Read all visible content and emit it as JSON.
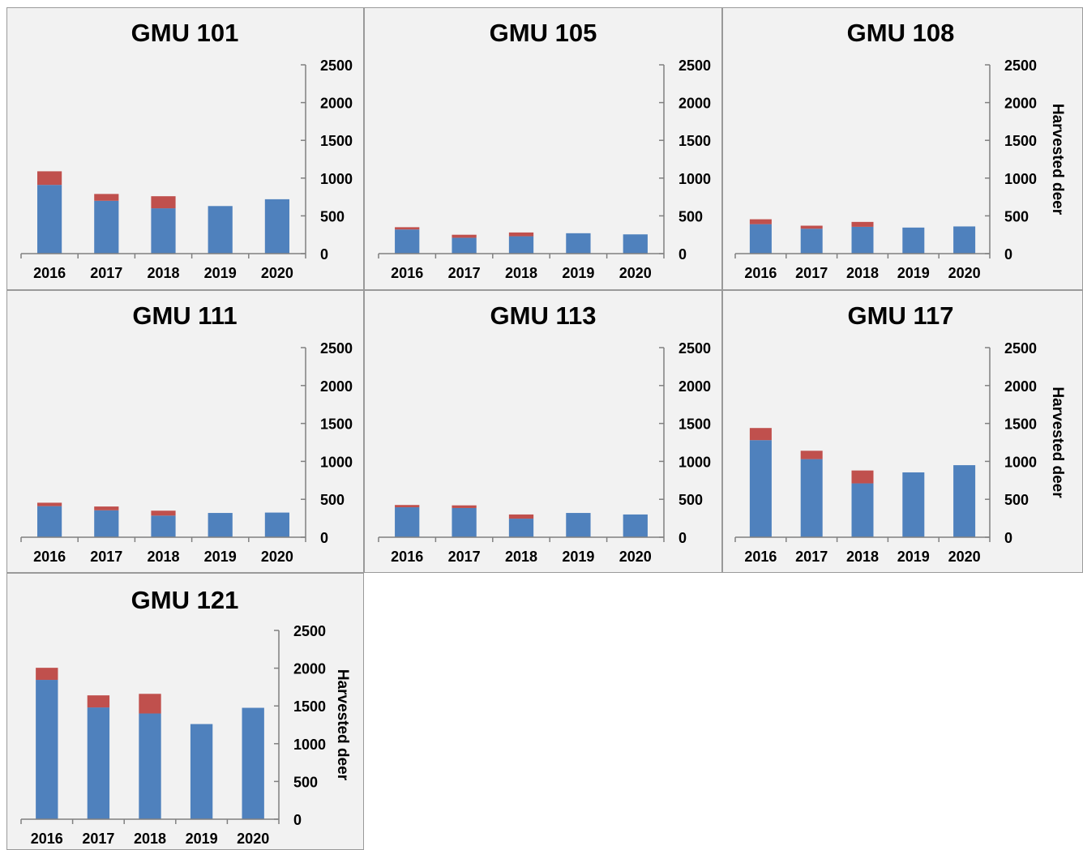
{
  "colors": {
    "lower": "#4f81bd",
    "upper": "#c0504d"
  },
  "chart_data": [
    {
      "type": "bar",
      "title": "GMU 101",
      "categories": [
        "2016",
        "2017",
        "2018",
        "2019",
        "2020"
      ],
      "ylim": [
        0,
        2500
      ],
      "yticks": [
        0,
        500,
        1000,
        1500,
        2000,
        2500
      ],
      "ylabel": "",
      "series": [
        {
          "values": [
            910,
            700,
            600,
            630,
            720
          ]
        },
        {
          "values": [
            180,
            90,
            160,
            0,
            0
          ]
        }
      ]
    },
    {
      "type": "bar",
      "title": "GMU 105",
      "categories": [
        "2016",
        "2017",
        "2018",
        "2019",
        "2020"
      ],
      "ylim": [
        0,
        2500
      ],
      "yticks": [
        0,
        500,
        1000,
        1500,
        2000,
        2500
      ],
      "ylabel": "",
      "series": [
        {
          "values": [
            320,
            210,
            230,
            270,
            255
          ]
        },
        {
          "values": [
            30,
            40,
            50,
            0,
            0
          ]
        }
      ]
    },
    {
      "type": "bar",
      "title": "GMU 108",
      "categories": [
        "2016",
        "2017",
        "2018",
        "2019",
        "2020"
      ],
      "ylim": [
        0,
        2500
      ],
      "yticks": [
        0,
        500,
        1000,
        1500,
        2000,
        2500
      ],
      "ylabel": "Harvested deer",
      "series": [
        {
          "values": [
            390,
            330,
            355,
            345,
            360
          ]
        },
        {
          "values": [
            65,
            40,
            65,
            0,
            0
          ]
        }
      ]
    },
    {
      "type": "bar",
      "title": "GMU 111",
      "categories": [
        "2016",
        "2017",
        "2018",
        "2019",
        "2020"
      ],
      "ylim": [
        0,
        2500
      ],
      "yticks": [
        0,
        500,
        1000,
        1500,
        2000,
        2500
      ],
      "ylabel": "",
      "series": [
        {
          "values": [
            410,
            355,
            285,
            320,
            325
          ]
        },
        {
          "values": [
            45,
            50,
            65,
            0,
            0
          ]
        }
      ]
    },
    {
      "type": "bar",
      "title": "GMU 113",
      "categories": [
        "2016",
        "2017",
        "2018",
        "2019",
        "2020"
      ],
      "ylim": [
        0,
        2500
      ],
      "yticks": [
        0,
        500,
        1000,
        1500,
        2000,
        2500
      ],
      "ylabel": "",
      "series": [
        {
          "values": [
            395,
            385,
            245,
            320,
            300
          ]
        },
        {
          "values": [
            30,
            35,
            55,
            0,
            0
          ]
        }
      ]
    },
    {
      "type": "bar",
      "title": "GMU 117",
      "categories": [
        "2016",
        "2017",
        "2018",
        "2019",
        "2020"
      ],
      "ylim": [
        0,
        2500
      ],
      "yticks": [
        0,
        500,
        1000,
        1500,
        2000,
        2500
      ],
      "ylabel": "Harvested deer",
      "series": [
        {
          "values": [
            1280,
            1030,
            710,
            855,
            950
          ]
        },
        {
          "values": [
            160,
            110,
            170,
            0,
            0
          ]
        }
      ]
    },
    {
      "type": "bar",
      "title": "GMU 121",
      "categories": [
        "2016",
        "2017",
        "2018",
        "2019",
        "2020"
      ],
      "ylim": [
        0,
        2500
      ],
      "yticks": [
        0,
        500,
        1000,
        1500,
        2000,
        2500
      ],
      "ylabel": "Harvested deer",
      "series": [
        {
          "values": [
            1845,
            1480,
            1400,
            1260,
            1475
          ]
        },
        {
          "values": [
            160,
            160,
            260,
            0,
            0
          ]
        }
      ]
    }
  ]
}
